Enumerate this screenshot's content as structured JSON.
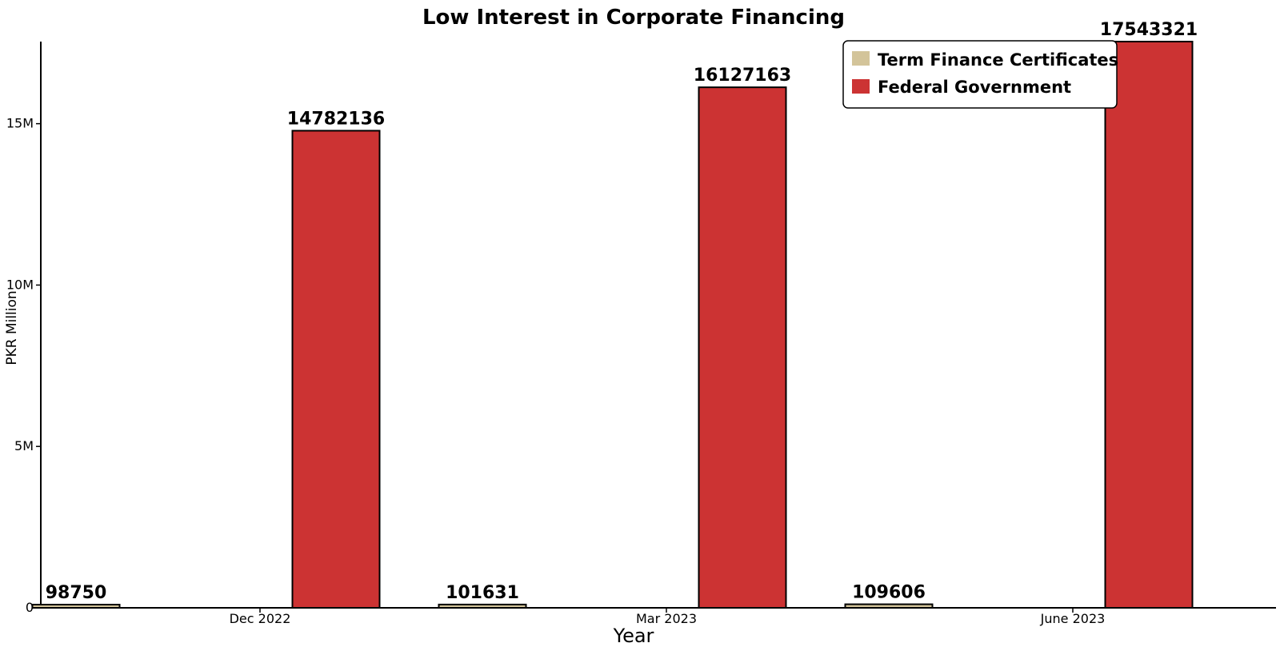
{
  "chart_data": {
    "type": "bar",
    "title": "Low Interest in Corporate Financing",
    "xlabel": "Year",
    "ylabel": "PKR Million",
    "categories": [
      "Dec 2022",
      "Mar 2023",
      "June 2023"
    ],
    "series": [
      {
        "name": "Term Finance Certificates",
        "values": [
          98750,
          101631,
          109606
        ],
        "color": "#d3c49a"
      },
      {
        "name": "Federal Government",
        "values": [
          14782136,
          16127163,
          17543321
        ],
        "color": "#cc3333"
      }
    ],
    "data_labels": [
      [
        "98750",
        "101631",
        "109606"
      ],
      [
        "14782136",
        "16127163",
        "17543321"
      ]
    ],
    "yticks": [
      0,
      5000000,
      10000000,
      15000000
    ],
    "ytick_labels": [
      "0",
      "5M",
      "10M",
      "15M"
    ],
    "ylim": [
      0,
      17543321
    ],
    "grid": false,
    "legend_position": "top-right"
  }
}
